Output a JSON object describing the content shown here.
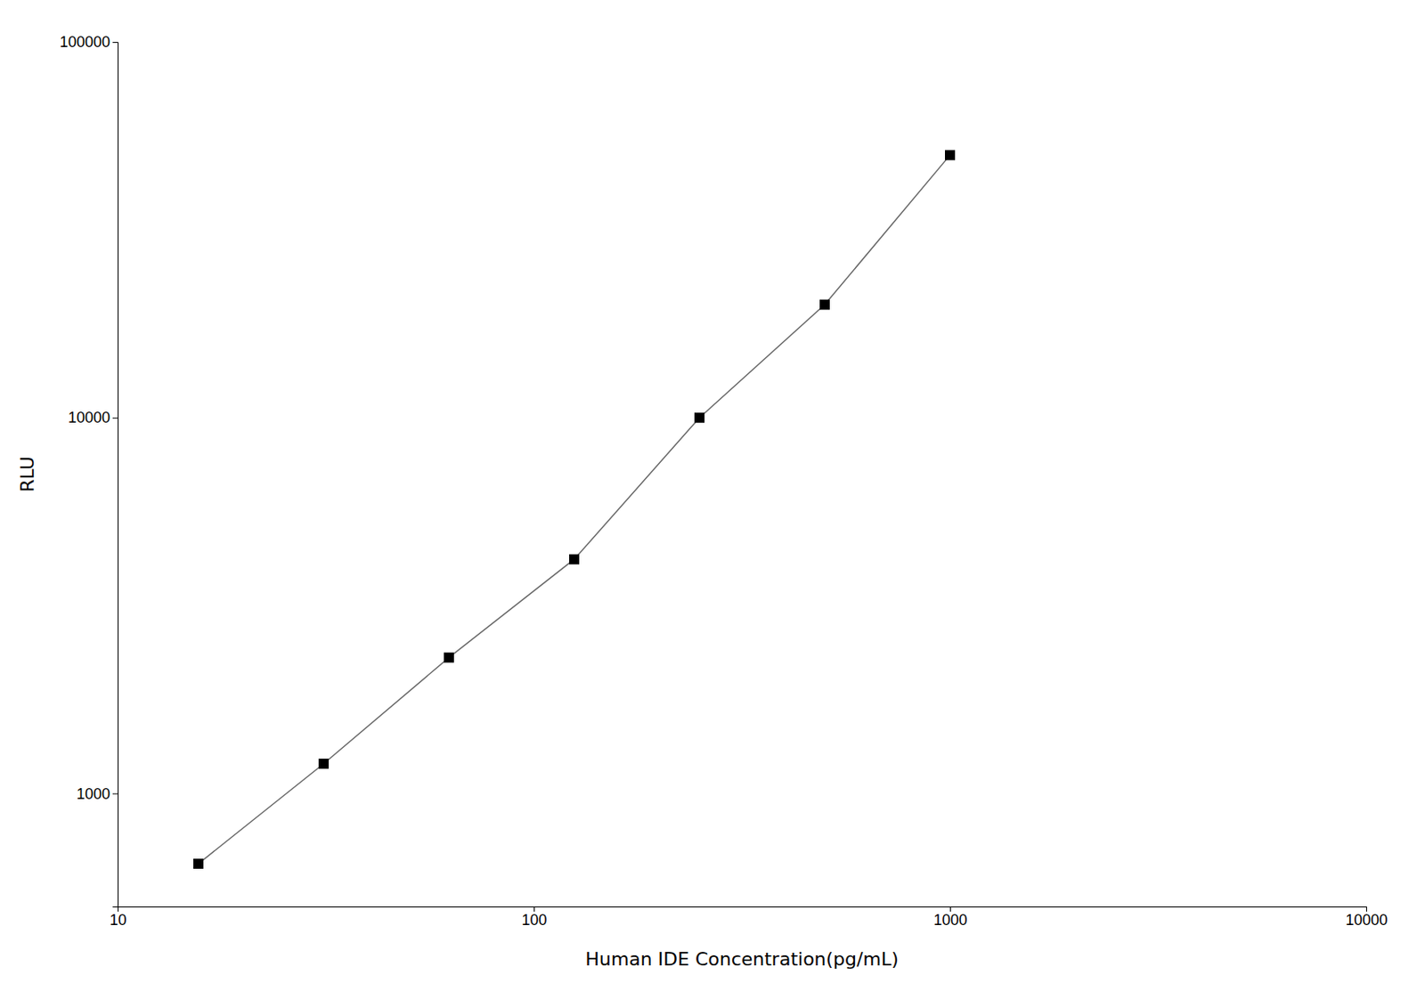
{
  "chart_data": {
    "type": "line",
    "xlabel": "Human IDE Concentration(pg/mL)",
    "ylabel": "RLU",
    "x": [
      15.625,
      31.25,
      62.5,
      125,
      250,
      500,
      1000
    ],
    "values": [
      650,
      1200,
      2300,
      4200,
      10000,
      20000,
      50000
    ],
    "color": "#000000",
    "marker": "square",
    "log": true,
    "xlim": [
      10,
      10000
    ],
    "ylim": [
      500,
      100000
    ],
    "xticks": [
      10,
      100,
      1000,
      10000
    ],
    "yticks": [
      1000,
      10000,
      100000
    ],
    "grid": false
  }
}
